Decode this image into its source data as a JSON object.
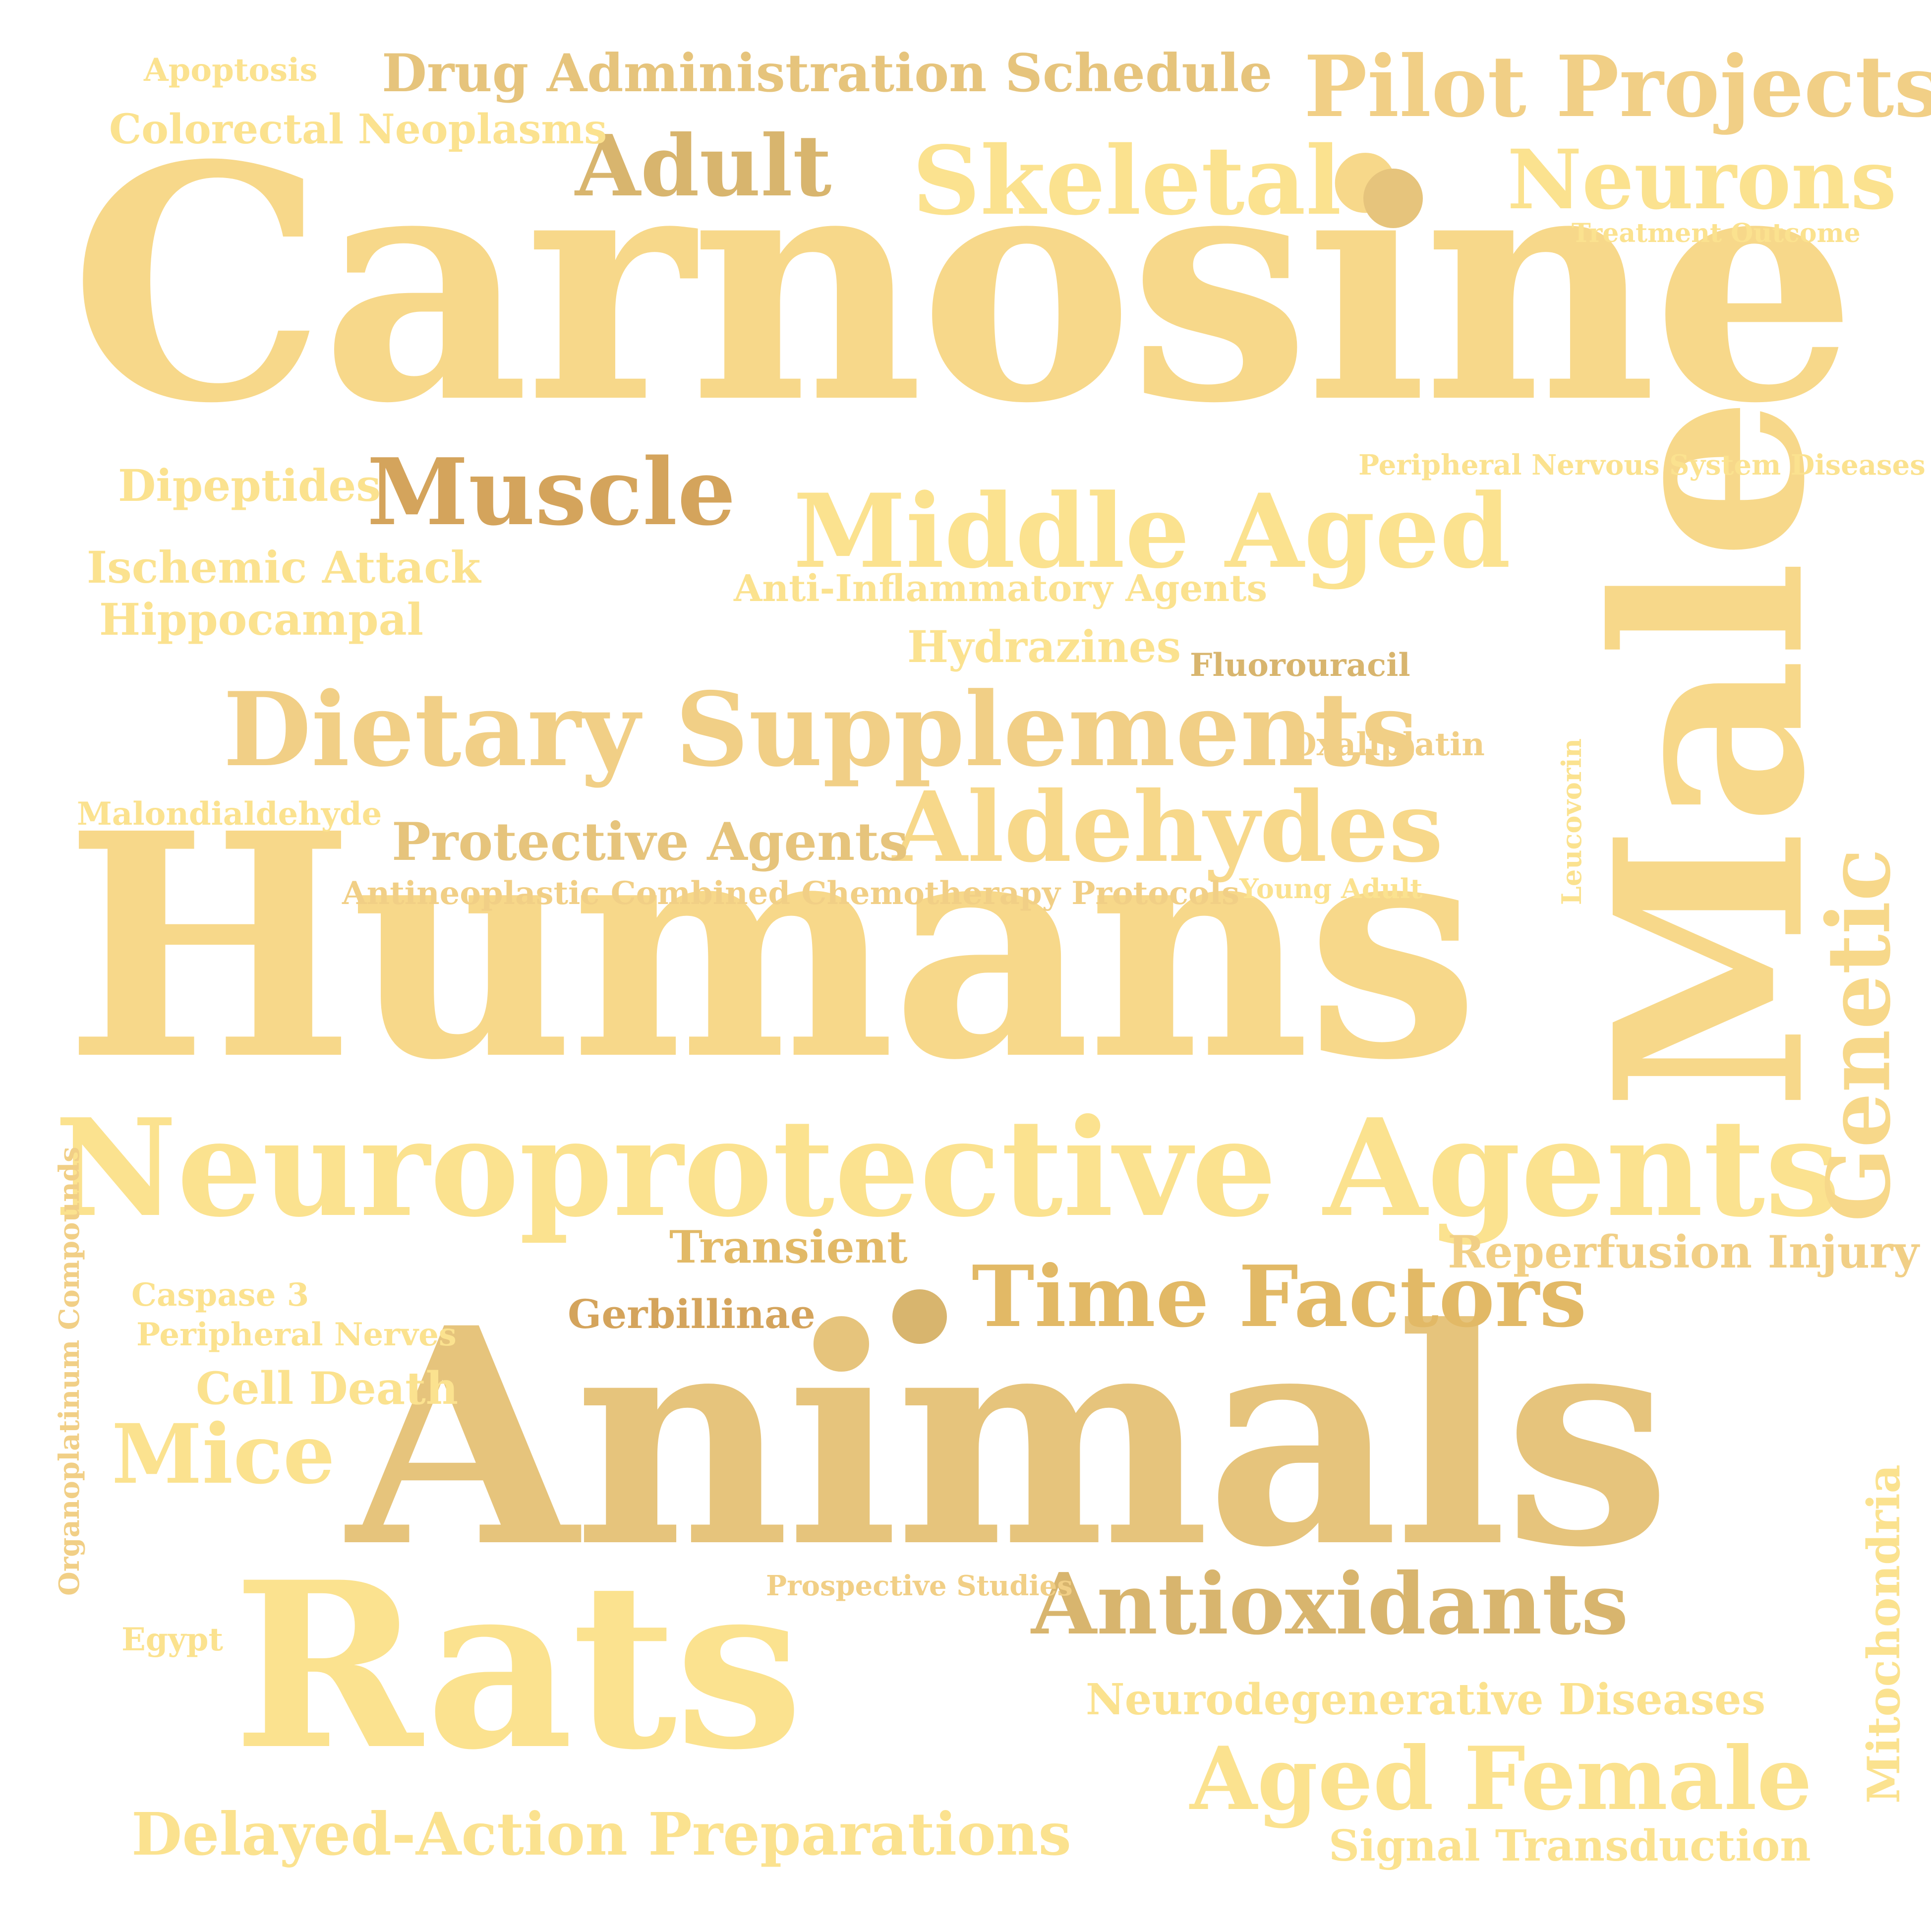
{
  "words": {
    "carnosine": "Carnosine",
    "humans": "Humans",
    "animals": "Animals",
    "rats": "Rats",
    "male": "Male",
    "neuroprotective_agents": "Neuroprotective Agents",
    "dietary_supplements": "Dietary Supplements",
    "middle_aged": "Middle Aged",
    "aldehydes": "Aldehydes",
    "muscle": "Muscle",
    "adult": "Adult",
    "skeletal": "Skeletal",
    "neurons": "Neurons",
    "pilot_projects": "Pilot Projects",
    "time_factors": "Time Factors",
    "antioxidants": "Antioxidants",
    "aged_female": "Aged Female",
    "mice": "Mice",
    "delayed_action": "Delayed-Action Preparations",
    "drug_admin": "Drug Administration Schedule",
    "protective_agents": "Protective Agents",
    "genetic": "Genetic",
    "apoptosis": "Apoptosis",
    "colorectal": "Colorectal Neoplasms",
    "dipeptides": "Dipeptides",
    "ischemic": "Ischemic Attack",
    "hippocampal": "Hippocampal",
    "anti_inflammatory": "Anti-Inflammatory Agents",
    "hydrazines": "Hydrazines",
    "fluorouracil": "Fluorouracil",
    "oxaliplatin": "Oxaliplatin",
    "treatment_outcome": "Treatment Outcome",
    "peripheral_nsd": "Peripheral Nervous System Diseases",
    "malondialdehyde": "Malondialdehyde",
    "antineoplastic": "Antineoplastic Combined Chemotherapy Protocols",
    "young_adult": "Young Adult",
    "transient": "Transient",
    "reperfusion": "Reperfusion Injury",
    "caspase3": "Caspase 3",
    "peripheral_nerves": "Peripheral Nerves",
    "gerbillinae": "Gerbillinae",
    "cell_death": "Cell Death",
    "prospective": "Prospective Studies",
    "egypt": "Egypt",
    "neurodegenerative": "Neurodegenerative Diseases",
    "signal_transduction": "Signal Transduction",
    "leucovorin": "Leucovorin",
    "organoplatinum": "Organoplatinum Compounds",
    "mitochondria": "Mitochondria"
  },
  "palette": {
    "light_gold": "#f7d88a",
    "pale_yellow": "#fbe28f",
    "sand": "#f1cf86",
    "tan": "#e6c47c",
    "dark_tan": "#d8b56e",
    "bronze": "#d4a45c"
  }
}
